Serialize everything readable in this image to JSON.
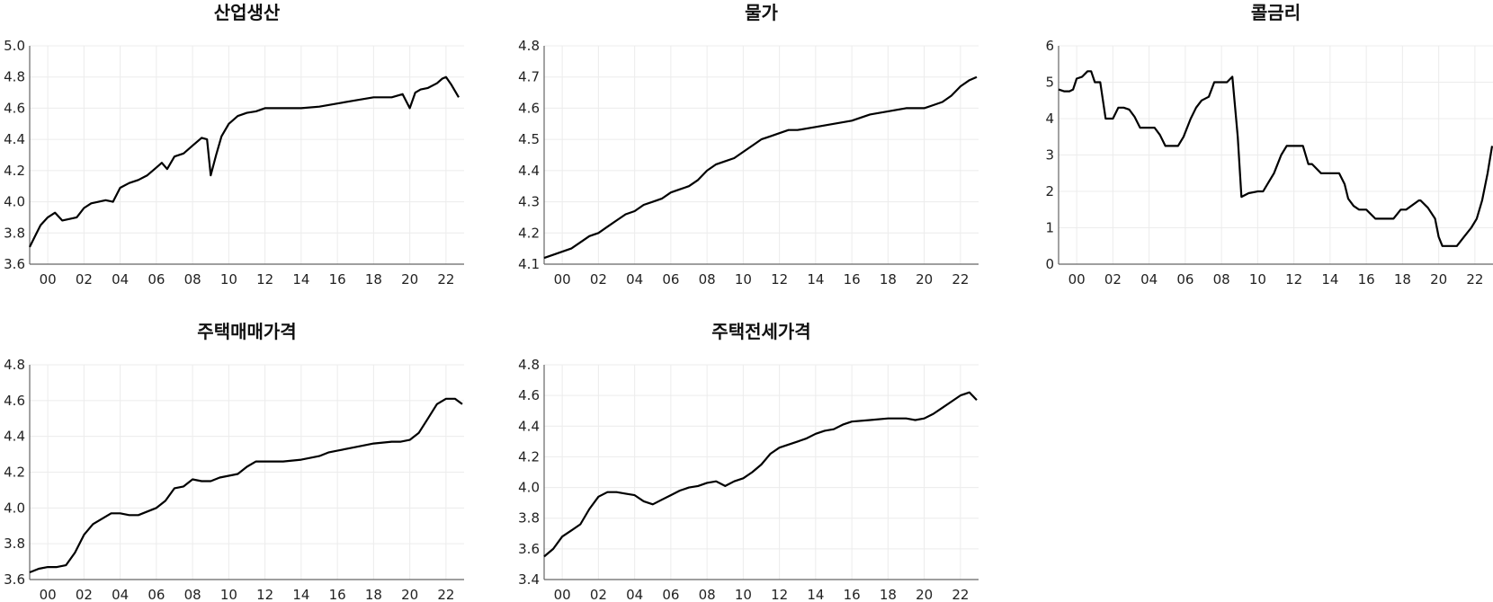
{
  "chart_data": [
    {
      "type": "line",
      "title": "산업생산",
      "ylim": [
        3.6,
        5.0
      ],
      "yticks": [
        "3.6",
        "3.8",
        "4.0",
        "4.2",
        "4.4",
        "4.6",
        "4.8",
        "5.0"
      ],
      "xlim": [
        1999.0,
        2023.0
      ],
      "xtick_labels": [
        "00",
        "02",
        "04",
        "06",
        "08",
        "10",
        "12",
        "14",
        "16",
        "18",
        "20",
        "22"
      ],
      "grid": true,
      "series": [
        {
          "x": [
            1999.0,
            1999.3,
            1999.6,
            2000.0,
            2000.4,
            2000.8,
            2001.2,
            2001.6,
            2002.0,
            2002.4,
            2002.8,
            2003.2,
            2003.6,
            2004.0,
            2004.5,
            2005.0,
            2005.5,
            2006.0,
            2006.3,
            2006.6,
            2007.0,
            2007.5,
            2008.0,
            2008.5,
            2008.8,
            2009.0,
            2009.3,
            2009.6,
            2010.0,
            2010.5,
            2011.0,
            2011.5,
            2012.0,
            2013.0,
            2014.0,
            2015.0,
            2016.0,
            2017.0,
            2018.0,
            2019.0,
            2019.6,
            2020.0,
            2020.3,
            2020.6,
            2021.0,
            2021.5,
            2021.8,
            2022.0,
            2022.3,
            2022.7
          ],
          "y": [
            3.71,
            3.78,
            3.85,
            3.9,
            3.93,
            3.88,
            3.89,
            3.9,
            3.96,
            3.99,
            4.0,
            4.01,
            4.0,
            4.09,
            4.12,
            4.14,
            4.17,
            4.22,
            4.25,
            4.21,
            4.29,
            4.31,
            4.36,
            4.41,
            4.4,
            4.17,
            4.3,
            4.42,
            4.5,
            4.55,
            4.57,
            4.58,
            4.6,
            4.6,
            4.6,
            4.61,
            4.63,
            4.65,
            4.67,
            4.67,
            4.69,
            4.6,
            4.7,
            4.72,
            4.73,
            4.76,
            4.79,
            4.8,
            4.75,
            4.67
          ]
        }
      ]
    },
    {
      "type": "line",
      "title": "물가",
      "ylim": [
        4.1,
        4.8
      ],
      "yticks": [
        "4.1",
        "4.2",
        "4.3",
        "4.4",
        "4.5",
        "4.6",
        "4.7",
        "4.8"
      ],
      "xlim": [
        1999.0,
        2023.0
      ],
      "xtick_labels": [
        "00",
        "02",
        "04",
        "06",
        "08",
        "10",
        "12",
        "14",
        "16",
        "18",
        "20",
        "22"
      ],
      "grid": true,
      "series": [
        {
          "x": [
            1999.0,
            1999.5,
            2000.0,
            2000.5,
            2001.0,
            2001.5,
            2002.0,
            2002.5,
            2003.0,
            2003.5,
            2004.0,
            2004.5,
            2005.0,
            2005.5,
            2006.0,
            2006.5,
            2007.0,
            2007.5,
            2008.0,
            2008.5,
            2009.0,
            2009.5,
            2010.0,
            2010.5,
            2011.0,
            2011.5,
            2012.0,
            2012.5,
            2013.0,
            2014.0,
            2015.0,
            2016.0,
            2017.0,
            2018.0,
            2019.0,
            2020.0,
            2020.5,
            2021.0,
            2021.5,
            2022.0,
            2022.5,
            2022.9
          ],
          "y": [
            4.12,
            4.13,
            4.14,
            4.15,
            4.17,
            4.19,
            4.2,
            4.22,
            4.24,
            4.26,
            4.27,
            4.29,
            4.3,
            4.31,
            4.33,
            4.34,
            4.35,
            4.37,
            4.4,
            4.42,
            4.43,
            4.44,
            4.46,
            4.48,
            4.5,
            4.51,
            4.52,
            4.53,
            4.53,
            4.54,
            4.55,
            4.56,
            4.58,
            4.59,
            4.6,
            4.6,
            4.61,
            4.62,
            4.64,
            4.67,
            4.69,
            4.7
          ]
        }
      ]
    },
    {
      "type": "line",
      "title": "콜금리",
      "ylim": [
        0,
        6
      ],
      "yticks": [
        "0",
        "1",
        "2",
        "3",
        "4",
        "5",
        "6"
      ],
      "xlim": [
        1999.0,
        2023.0
      ],
      "xtick_labels": [
        "00",
        "02",
        "04",
        "06",
        "08",
        "10",
        "12",
        "14",
        "16",
        "18",
        "20",
        "22"
      ],
      "grid": true,
      "series": [
        {
          "x": [
            1999.0,
            1999.3,
            1999.6,
            1999.8,
            2000.0,
            2000.3,
            2000.6,
            2000.8,
            2001.0,
            2001.3,
            2001.6,
            2001.8,
            2002.0,
            2002.3,
            2002.6,
            2002.9,
            2003.2,
            2003.5,
            2003.8,
            2004.3,
            2004.6,
            2004.9,
            2005.3,
            2005.6,
            2005.9,
            2006.3,
            2006.6,
            2006.9,
            2007.3,
            2007.6,
            2008.0,
            2008.3,
            2008.6,
            2008.9,
            2009.1,
            2009.5,
            2010.0,
            2010.3,
            2010.6,
            2010.9,
            2011.3,
            2011.6,
            2012.0,
            2012.5,
            2012.8,
            2013.0,
            2013.5,
            2014.0,
            2014.5,
            2014.8,
            2015.0,
            2015.3,
            2015.6,
            2016.0,
            2016.5,
            2017.0,
            2017.5,
            2017.9,
            2018.2,
            2018.9,
            2019.0,
            2019.4,
            2019.8,
            2020.0,
            2020.2,
            2020.5,
            2021.0,
            2021.4,
            2021.8,
            2022.1,
            2022.4,
            2022.7,
            2022.95
          ],
          "y": [
            4.8,
            4.75,
            4.75,
            4.8,
            5.1,
            5.15,
            5.3,
            5.3,
            5.0,
            5.0,
            4.0,
            4.0,
            4.0,
            4.3,
            4.3,
            4.25,
            4.05,
            3.75,
            3.75,
            3.75,
            3.55,
            3.25,
            3.25,
            3.25,
            3.5,
            4.0,
            4.3,
            4.5,
            4.6,
            5.0,
            5.0,
            5.0,
            5.15,
            3.5,
            1.85,
            1.95,
            2.0,
            2.0,
            2.25,
            2.5,
            3.0,
            3.25,
            3.25,
            3.25,
            2.75,
            2.75,
            2.5,
            2.5,
            2.5,
            2.2,
            1.8,
            1.6,
            1.5,
            1.5,
            1.25,
            1.25,
            1.25,
            1.5,
            1.5,
            1.75,
            1.75,
            1.55,
            1.25,
            0.75,
            0.5,
            0.5,
            0.5,
            0.75,
            1.0,
            1.25,
            1.75,
            2.5,
            3.25
          ]
        }
      ]
    },
    {
      "type": "line",
      "title": "주택매매가격",
      "ylim": [
        3.6,
        4.8
      ],
      "yticks": [
        "3.6",
        "3.8",
        "4.0",
        "4.2",
        "4.4",
        "4.6",
        "4.8"
      ],
      "xlim": [
        1999.0,
        2023.0
      ],
      "xtick_labels": [
        "00",
        "02",
        "04",
        "06",
        "08",
        "10",
        "12",
        "14",
        "16",
        "18",
        "20",
        "22"
      ],
      "grid": true,
      "series": [
        {
          "x": [
            1999.0,
            1999.5,
            2000.0,
            2000.5,
            2001.0,
            2001.5,
            2002.0,
            2002.5,
            2003.0,
            2003.5,
            2004.0,
            2004.5,
            2005.0,
            2005.5,
            2006.0,
            2006.5,
            2007.0,
            2007.5,
            2008.0,
            2008.5,
            2009.0,
            2009.5,
            2010.0,
            2010.5,
            2011.0,
            2011.5,
            2012.0,
            2013.0,
            2014.0,
            2015.0,
            2015.5,
            2016.0,
            2017.0,
            2018.0,
            2019.0,
            2019.5,
            2020.0,
            2020.5,
            2021.0,
            2021.5,
            2022.0,
            2022.5,
            2022.9
          ],
          "y": [
            3.64,
            3.66,
            3.67,
            3.67,
            3.68,
            3.75,
            3.85,
            3.91,
            3.94,
            3.97,
            3.97,
            3.96,
            3.96,
            3.98,
            4.0,
            4.04,
            4.11,
            4.12,
            4.16,
            4.15,
            4.15,
            4.17,
            4.18,
            4.19,
            4.23,
            4.26,
            4.26,
            4.26,
            4.27,
            4.29,
            4.31,
            4.32,
            4.34,
            4.36,
            4.37,
            4.37,
            4.38,
            4.42,
            4.5,
            4.58,
            4.61,
            4.61,
            4.58
          ]
        }
      ]
    },
    {
      "type": "line",
      "title": "주택전세가격",
      "ylim": [
        3.4,
        4.8
      ],
      "yticks": [
        "3.4",
        "3.6",
        "3.8",
        "4.0",
        "4.2",
        "4.4",
        "4.6",
        "4.8"
      ],
      "xlim": [
        1999.0,
        2023.0
      ],
      "xtick_labels": [
        "00",
        "02",
        "04",
        "06",
        "08",
        "10",
        "12",
        "14",
        "16",
        "18",
        "20",
        "22"
      ],
      "grid": true,
      "series": [
        {
          "x": [
            1999.0,
            1999.5,
            2000.0,
            2000.5,
            2001.0,
            2001.5,
            2002.0,
            2002.5,
            2003.0,
            2003.5,
            2004.0,
            2004.5,
            2005.0,
            2005.5,
            2006.0,
            2006.5,
            2007.0,
            2007.5,
            2008.0,
            2008.5,
            2009.0,
            2009.5,
            2010.0,
            2010.5,
            2011.0,
            2011.5,
            2012.0,
            2012.5,
            2013.0,
            2013.5,
            2014.0,
            2014.5,
            2015.0,
            2015.5,
            2016.0,
            2017.0,
            2018.0,
            2019.0,
            2019.5,
            2020.0,
            2020.5,
            2021.0,
            2021.5,
            2022.0,
            2022.5,
            2022.9
          ],
          "y": [
            3.55,
            3.6,
            3.68,
            3.72,
            3.76,
            3.86,
            3.94,
            3.97,
            3.97,
            3.96,
            3.95,
            3.91,
            3.89,
            3.92,
            3.95,
            3.98,
            4.0,
            4.01,
            4.03,
            4.04,
            4.01,
            4.04,
            4.06,
            4.1,
            4.15,
            4.22,
            4.26,
            4.28,
            4.3,
            4.32,
            4.35,
            4.37,
            4.38,
            4.41,
            4.43,
            4.44,
            4.45,
            4.45,
            4.44,
            4.45,
            4.48,
            4.52,
            4.56,
            4.6,
            4.62,
            4.57
          ]
        }
      ]
    }
  ]
}
